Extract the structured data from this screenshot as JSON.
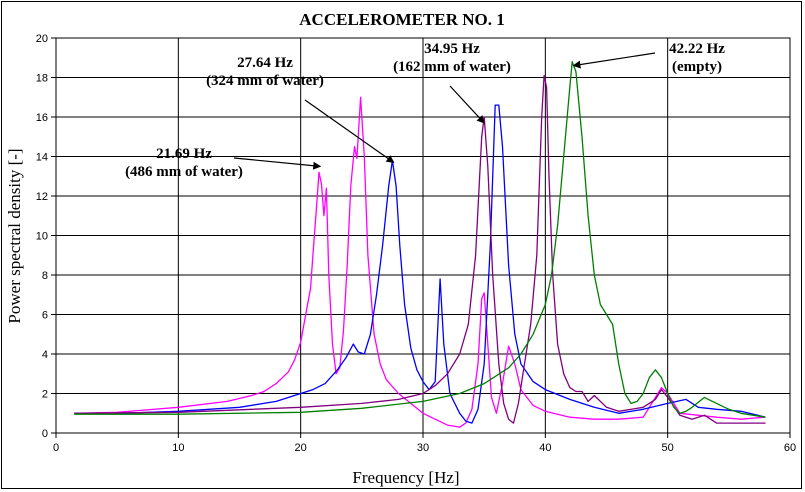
{
  "chart_data": {
    "type": "line",
    "title": "ACCELEROMETER NO. 1",
    "xlabel": "Frequency [Hz]",
    "ylabel": "Power spectral density [-]",
    "xlim": [
      0,
      60
    ],
    "ylim": [
      0,
      20
    ],
    "x_ticks": [
      0,
      10,
      20,
      30,
      40,
      50,
      60
    ],
    "y_ticks": [
      0,
      2,
      4,
      6,
      8,
      10,
      12,
      14,
      16,
      18,
      20
    ],
    "grid": true,
    "series": [
      {
        "color": "#ff00ff",
        "points": [
          [
            1.5,
            1.0
          ],
          [
            5,
            1.05
          ],
          [
            10,
            1.3
          ],
          [
            14,
            1.6
          ],
          [
            16,
            1.9
          ],
          [
            17,
            2.1
          ],
          [
            18,
            2.5
          ],
          [
            19,
            3.1
          ],
          [
            19.5,
            3.7
          ],
          [
            20,
            4.6
          ],
          [
            20.5,
            6.3
          ],
          [
            20.8,
            7.3
          ],
          [
            21,
            9.0
          ],
          [
            21.3,
            11.5
          ],
          [
            21.5,
            13.2
          ],
          [
            21.7,
            12.6
          ],
          [
            21.9,
            11.0
          ],
          [
            22.1,
            12.4
          ],
          [
            22.3,
            8.0
          ],
          [
            22.6,
            4.5
          ],
          [
            22.9,
            3.0
          ],
          [
            23.2,
            3.3
          ],
          [
            23.5,
            5.2
          ],
          [
            23.8,
            8.5
          ],
          [
            24.1,
            12.5
          ],
          [
            24.4,
            14.5
          ],
          [
            24.6,
            13.9
          ],
          [
            24.9,
            17.0
          ],
          [
            25.2,
            14.0
          ],
          [
            25.5,
            9.0
          ],
          [
            26,
            5.0
          ],
          [
            26.5,
            3.5
          ],
          [
            27,
            2.7
          ],
          [
            28,
            2.0
          ],
          [
            29,
            1.5
          ],
          [
            30,
            1.0
          ],
          [
            31,
            0.7
          ],
          [
            32,
            0.4
          ],
          [
            33,
            0.3
          ],
          [
            33.5,
            0.5
          ],
          [
            34,
            1.2
          ],
          [
            34.5,
            3.5
          ],
          [
            34.8,
            6.8
          ],
          [
            35,
            7.1
          ],
          [
            35.3,
            4.5
          ],
          [
            35.6,
            1.8
          ],
          [
            36,
            1.0
          ],
          [
            36.5,
            2.5
          ],
          [
            37,
            4.4
          ],
          [
            37.5,
            3.5
          ],
          [
            38,
            2.2
          ],
          [
            39,
            1.4
          ],
          [
            40,
            1.1
          ],
          [
            42,
            0.8
          ],
          [
            44,
            0.7
          ],
          [
            46,
            0.7
          ],
          [
            48,
            0.8
          ],
          [
            49.5,
            2.3
          ],
          [
            50,
            2.0
          ],
          [
            51,
            1.0
          ],
          [
            54,
            0.8
          ],
          [
            56,
            0.7
          ],
          [
            58,
            0.8
          ]
        ]
      },
      {
        "color": "#0000ff",
        "points": [
          [
            1.5,
            1.0
          ],
          [
            5,
            1.0
          ],
          [
            10,
            1.1
          ],
          [
            15,
            1.3
          ],
          [
            18,
            1.6
          ],
          [
            20,
            2.0
          ],
          [
            21,
            2.2
          ],
          [
            22,
            2.5
          ],
          [
            23,
            3.2
          ],
          [
            23.7,
            3.8
          ],
          [
            24.3,
            4.5
          ],
          [
            24.7,
            4.1
          ],
          [
            25.2,
            4.0
          ],
          [
            25.7,
            5.0
          ],
          [
            26.2,
            7.0
          ],
          [
            26.7,
            9.5
          ],
          [
            27.2,
            12.5
          ],
          [
            27.5,
            13.8
          ],
          [
            27.8,
            12.5
          ],
          [
            28.1,
            9.5
          ],
          [
            28.5,
            6.5
          ],
          [
            29,
            4.3
          ],
          [
            29.5,
            3.2
          ],
          [
            30,
            2.6
          ],
          [
            30.5,
            2.2
          ],
          [
            31,
            2.6
          ],
          [
            31.4,
            7.8
          ],
          [
            31.7,
            4.5
          ],
          [
            32.2,
            2.0
          ],
          [
            33,
            1.0
          ],
          [
            33.5,
            0.6
          ],
          [
            34,
            0.5
          ],
          [
            34.5,
            1.2
          ],
          [
            35,
            3.5
          ],
          [
            35.5,
            9.5
          ],
          [
            35.9,
            16.6
          ],
          [
            36.2,
            16.6
          ],
          [
            36.5,
            14.5
          ],
          [
            37,
            8.5
          ],
          [
            37.5,
            5.0
          ],
          [
            38,
            3.5
          ],
          [
            39,
            2.6
          ],
          [
            40,
            2.2
          ],
          [
            42,
            1.7
          ],
          [
            44,
            1.3
          ],
          [
            46,
            1.0
          ],
          [
            48,
            1.2
          ],
          [
            50,
            1.5
          ],
          [
            51.5,
            1.7
          ],
          [
            52.5,
            1.3
          ],
          [
            54,
            1.2
          ],
          [
            56,
            1.1
          ],
          [
            58,
            0.8
          ]
        ]
      },
      {
        "color": "#800080",
        "points": [
          [
            1.5,
            1.0
          ],
          [
            10,
            1.05
          ],
          [
            20,
            1.3
          ],
          [
            25,
            1.5
          ],
          [
            28,
            1.7
          ],
          [
            30,
            2.0
          ],
          [
            31,
            2.4
          ],
          [
            32,
            3.0
          ],
          [
            33,
            4.0
          ],
          [
            33.7,
            5.5
          ],
          [
            34.3,
            9.0
          ],
          [
            34.8,
            15.0
          ],
          [
            35,
            16.0
          ],
          [
            35.3,
            13.5
          ],
          [
            35.7,
            8.0
          ],
          [
            36.2,
            3.5
          ],
          [
            36.6,
            1.5
          ],
          [
            37,
            0.7
          ],
          [
            37.4,
            0.5
          ],
          [
            37.8,
            1.5
          ],
          [
            38.3,
            3.5
          ],
          [
            38.8,
            5.5
          ],
          [
            39.3,
            9.0
          ],
          [
            39.7,
            16.0
          ],
          [
            39.9,
            18.1
          ],
          [
            40.1,
            17.5
          ],
          [
            40.3,
            13.0
          ],
          [
            40.6,
            8.0
          ],
          [
            41,
            4.5
          ],
          [
            41.5,
            3.0
          ],
          [
            42,
            2.3
          ],
          [
            42.5,
            2.1
          ],
          [
            43,
            2.1
          ],
          [
            43.5,
            1.6
          ],
          [
            44,
            1.9
          ],
          [
            45,
            1.3
          ],
          [
            46,
            1.1
          ],
          [
            48,
            1.3
          ],
          [
            49,
            1.7
          ],
          [
            49.5,
            2.2
          ],
          [
            50,
            1.8
          ],
          [
            51,
            0.9
          ],
          [
            52,
            0.7
          ],
          [
            53,
            0.9
          ],
          [
            54,
            0.5
          ],
          [
            56,
            0.5
          ],
          [
            58,
            0.5
          ]
        ]
      },
      {
        "color": "#008000",
        "points": [
          [
            1.5,
            0.95
          ],
          [
            10,
            0.95
          ],
          [
            20,
            1.05
          ],
          [
            25,
            1.25
          ],
          [
            30,
            1.6
          ],
          [
            33,
            2.0
          ],
          [
            35,
            2.5
          ],
          [
            37,
            3.3
          ],
          [
            38,
            4.0
          ],
          [
            39,
            5.0
          ],
          [
            40,
            6.5
          ],
          [
            40.5,
            8.0
          ],
          [
            41,
            10.5
          ],
          [
            41.5,
            14.0
          ],
          [
            42,
            17.5
          ],
          [
            42.2,
            18.8
          ],
          [
            42.5,
            18.3
          ],
          [
            43,
            15.0
          ],
          [
            43.5,
            11.0
          ],
          [
            44,
            8.0
          ],
          [
            44.5,
            6.5
          ],
          [
            45,
            6.0
          ],
          [
            45.5,
            5.5
          ],
          [
            46,
            3.5
          ],
          [
            46.5,
            2.0
          ],
          [
            47,
            1.5
          ],
          [
            47.5,
            1.6
          ],
          [
            48,
            2.0
          ],
          [
            48.5,
            2.8
          ],
          [
            49,
            3.2
          ],
          [
            49.5,
            2.8
          ],
          [
            50,
            2.0
          ],
          [
            50.5,
            1.3
          ],
          [
            51,
            1.0
          ],
          [
            51.5,
            1.1
          ],
          [
            52,
            1.3
          ],
          [
            53,
            1.8
          ],
          [
            54,
            1.5
          ],
          [
            55,
            1.2
          ],
          [
            56,
            1.0
          ],
          [
            58,
            0.8
          ]
        ]
      }
    ],
    "annotations": [
      {
        "lines": [
          "21.69 Hz",
          "(486 mm of water)"
        ],
        "target": [
          21.6,
          13.5
        ]
      },
      {
        "lines": [
          "27.64 Hz",
          "(324 mm of water)"
        ],
        "target": [
          27.6,
          13.7
        ]
      },
      {
        "lines": [
          "34.95 Hz",
          "(162 mm of water)"
        ],
        "target": [
          35.0,
          15.7
        ]
      },
      {
        "lines": [
          "42.22 Hz",
          "(empty)"
        ],
        "target": [
          42.3,
          18.6
        ]
      }
    ]
  }
}
